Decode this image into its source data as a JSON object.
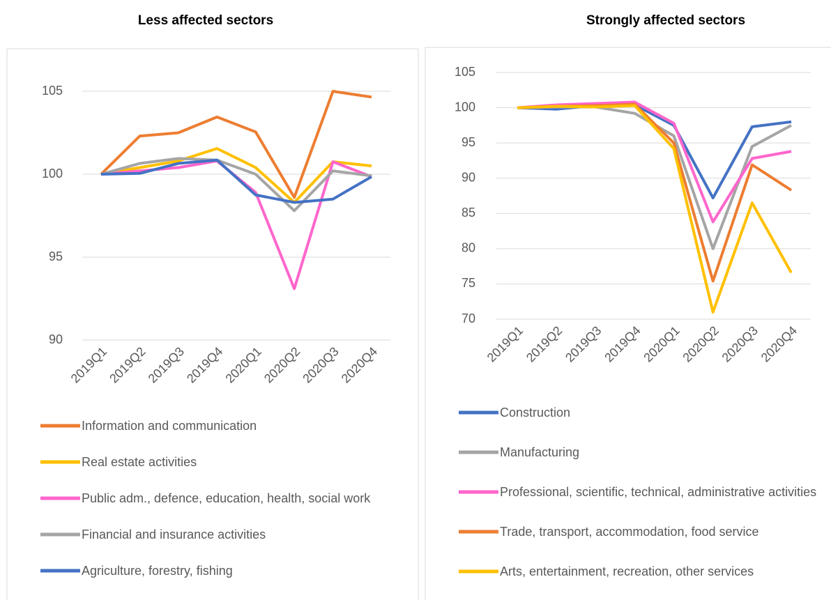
{
  "chart_data": [
    {
      "type": "line",
      "title": "Less affected sectors",
      "categories": [
        "2019Q1",
        "2019Q2",
        "2019Q3",
        "2019Q4",
        "2020Q1",
        "2020Q2",
        "2020Q3",
        "2020Q4"
      ],
      "ylim": [
        90,
        105
      ],
      "yticks": [
        90,
        95,
        100,
        105
      ],
      "grid": true,
      "series": [
        {
          "name": "Information and communication",
          "color": "#ED7D31",
          "values": [
            100,
            102.3,
            102.5,
            103.45,
            102.55,
            98.6,
            105.0,
            104.65
          ]
        },
        {
          "name": "Real estate activities",
          "color": "#FFC000",
          "values": [
            100,
            100.4,
            100.8,
            101.55,
            100.4,
            98.3,
            100.75,
            100.5
          ]
        },
        {
          "name": "Public adm., defence, education, health, social work",
          "color": "#FF66CC",
          "values": [
            100,
            100.2,
            100.4,
            100.8,
            98.9,
            93.1,
            100.75,
            99.85
          ]
        },
        {
          "name": "Financial and insurance activities",
          "color": "#A5A5A5",
          "values": [
            100,
            100.65,
            100.95,
            100.85,
            100.0,
            97.8,
            100.2,
            99.9
          ]
        },
        {
          "name": "Agriculture, forestry, fishing",
          "color": "#4472C4",
          "values": [
            100,
            100.05,
            100.65,
            100.85,
            98.75,
            98.3,
            98.5,
            99.85
          ]
        }
      ]
    },
    {
      "type": "line",
      "title": "Strongly affected sectors",
      "categories": [
        "2019Q1",
        "2019Q2",
        "2019Q3",
        "2019Q4",
        "2020Q1",
        "2020Q2",
        "2020Q3",
        "2020Q4"
      ],
      "ylim": [
        70,
        105
      ],
      "yticks": [
        70,
        75,
        80,
        85,
        90,
        95,
        100,
        105
      ],
      "grid": true,
      "series": [
        {
          "name": "Construction",
          "color": "#4472C4",
          "values": [
            100,
            99.8,
            100.3,
            100.4,
            97.5,
            87.2,
            97.3,
            98.0
          ]
        },
        {
          "name": "Manufacturing",
          "color": "#A5A5A5",
          "values": [
            100,
            100.1,
            100.1,
            99.2,
            96.0,
            80.0,
            94.5,
            97.5
          ]
        },
        {
          "name": "Professional, scientific, technical, administrative activities",
          "color": "#FF66CC",
          "values": [
            100,
            100.4,
            100.6,
            100.8,
            97.8,
            83.8,
            92.8,
            93.8
          ]
        },
        {
          "name": "Trade, transport, accommodation, food service",
          "color": "#ED7D31",
          "values": [
            100,
            100.2,
            100.3,
            100.5,
            95.0,
            75.4,
            91.9,
            88.3
          ]
        },
        {
          "name": "Arts, entertainment, recreation, other services",
          "color": "#FFC000",
          "values": [
            100,
            100.2,
            100.1,
            100.3,
            94.2,
            71.0,
            86.5,
            76.6
          ]
        }
      ]
    }
  ]
}
